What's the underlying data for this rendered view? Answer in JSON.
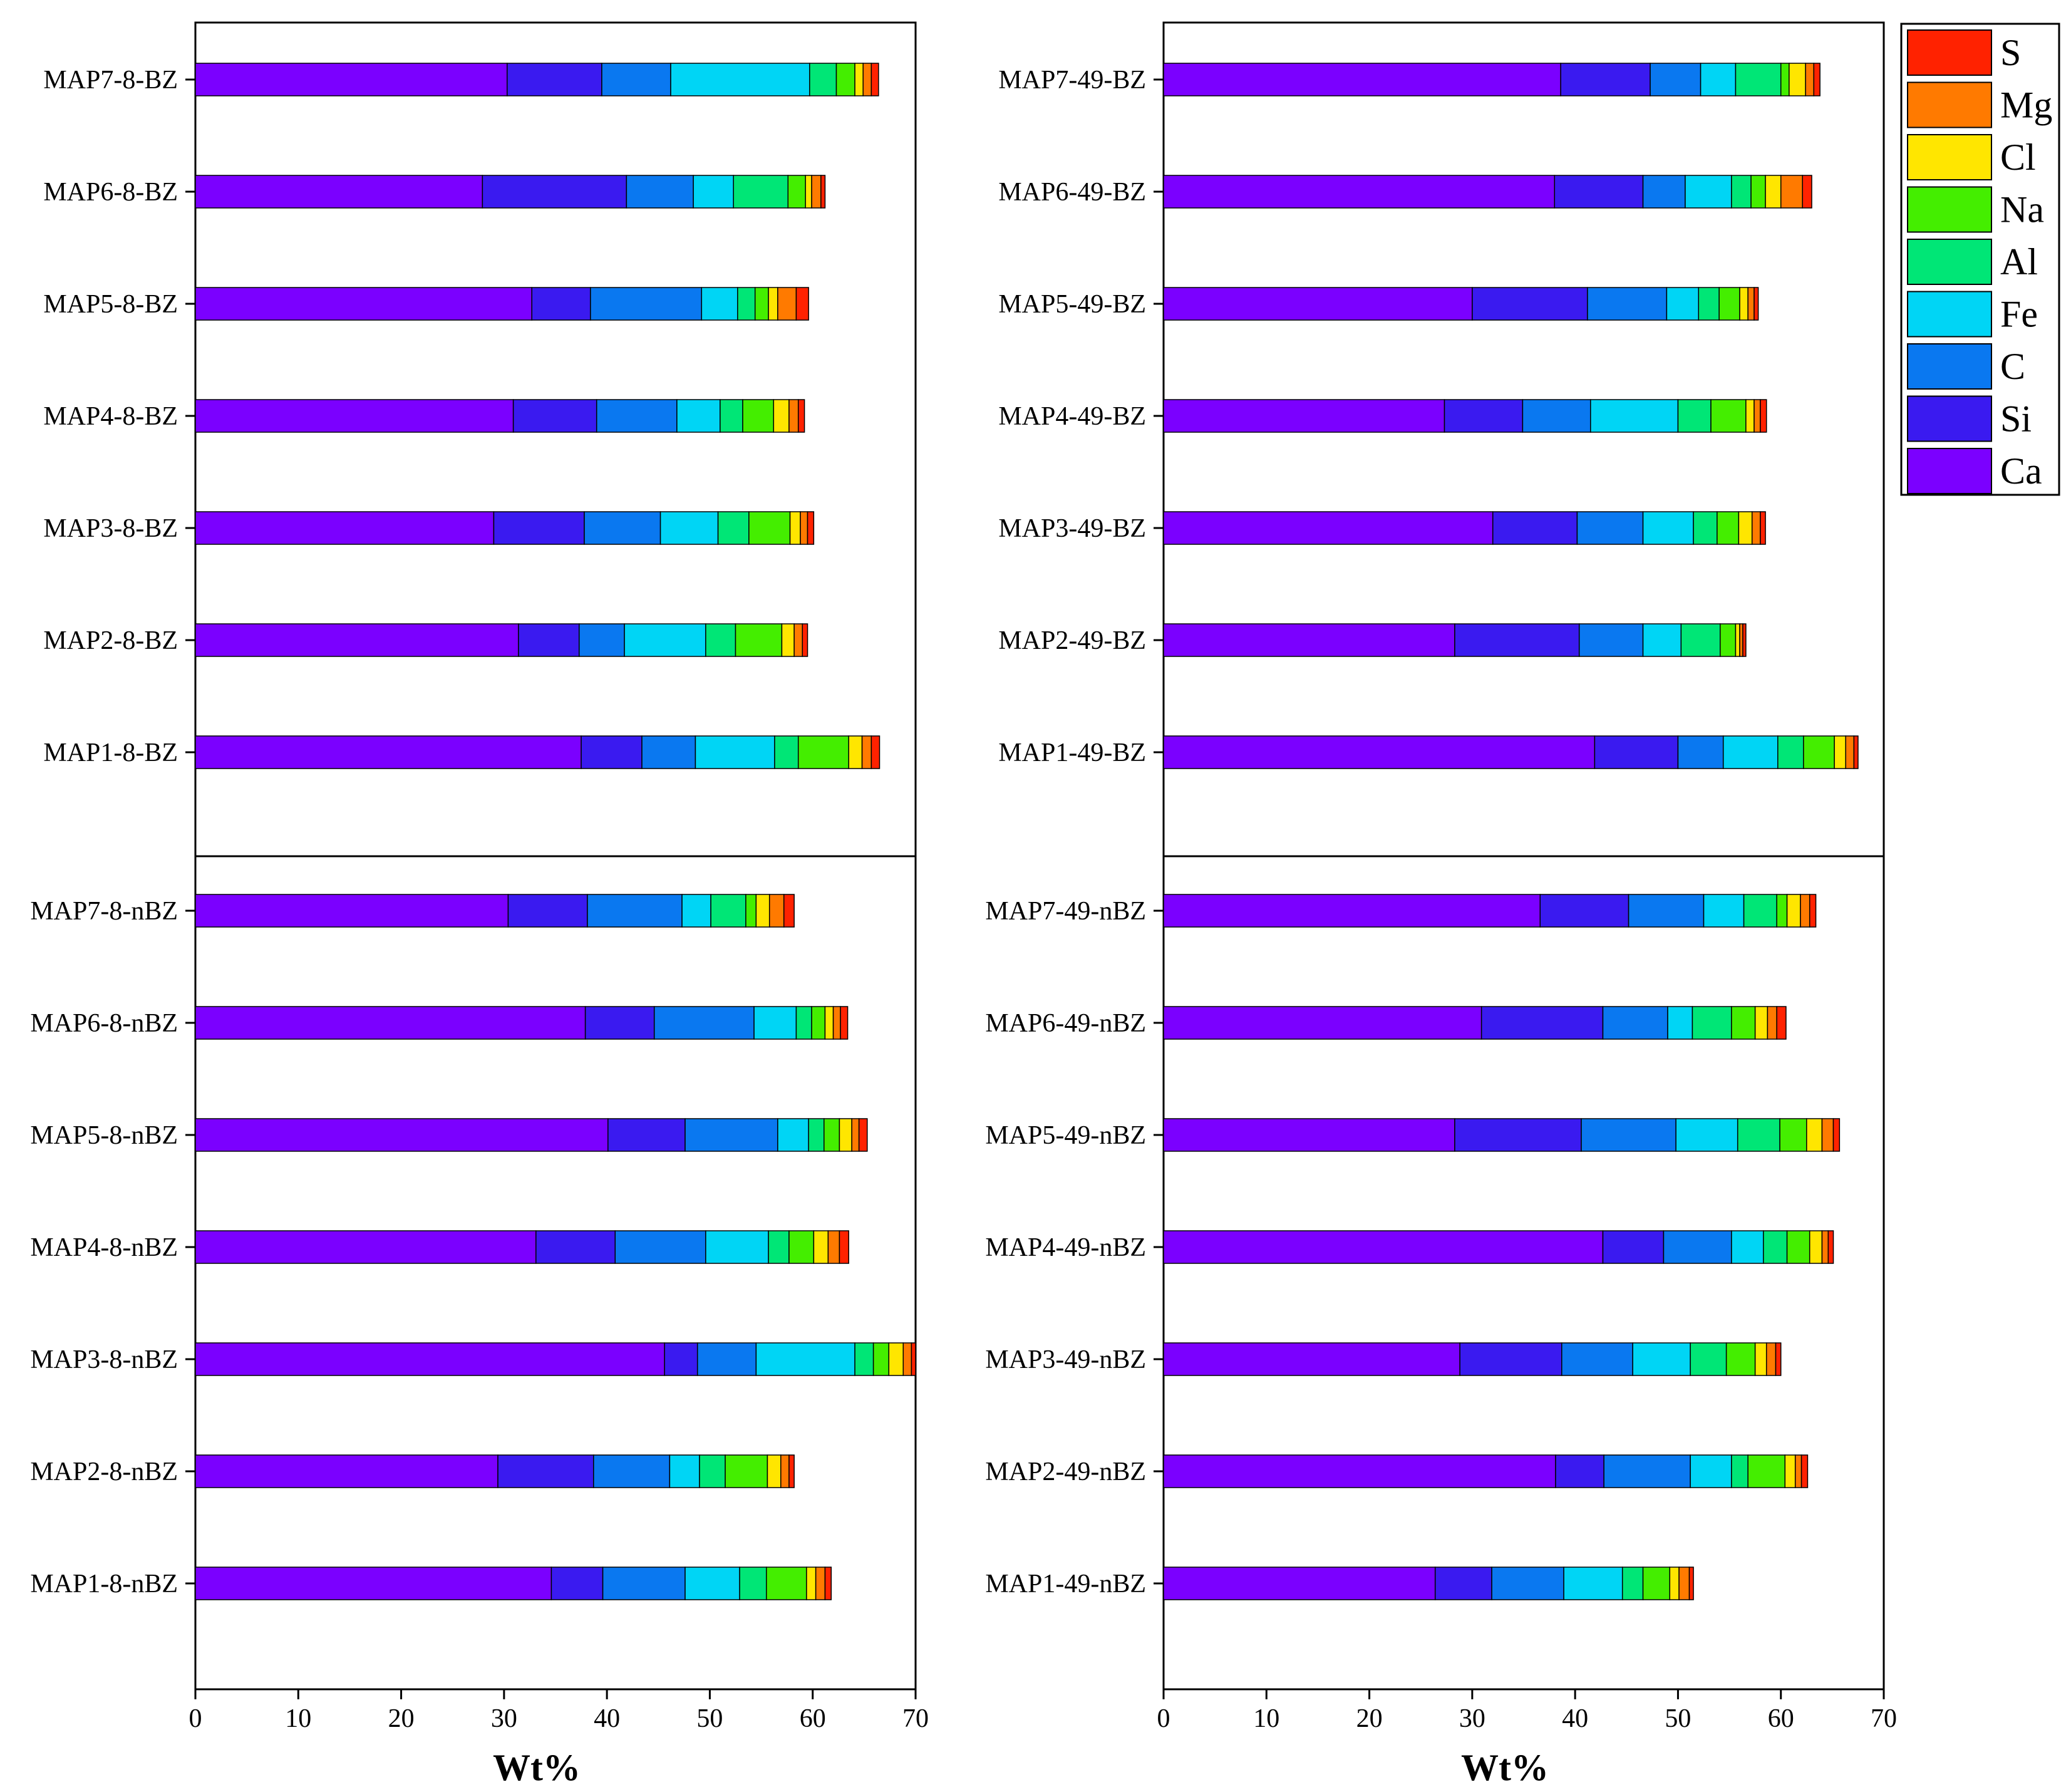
{
  "chart_data": {
    "type": "bar",
    "orientation": "horizontal",
    "stacked": true,
    "xlabel": "Wt%",
    "xlim": [
      0,
      70
    ],
    "xticks": [
      0,
      10,
      20,
      30,
      40,
      50,
      60,
      70
    ],
    "elements": [
      "Ca",
      "Si",
      "C",
      "Fe",
      "Al",
      "Na",
      "Cl",
      "Mg",
      "S"
    ],
    "colors": {
      "Ca": "#7B00FF",
      "Si": "#3A1AF0",
      "C": "#0A78F0",
      "Fe": "#00D5F5",
      "Al": "#00E676",
      "Na": "#44EE00",
      "Cl": "#FFE600",
      "Mg": "#FF7A00",
      "S": "#FF2200"
    },
    "legend": {
      "placement": "top-right outside",
      "order": [
        "S",
        "Mg",
        "Cl",
        "Na",
        "Al",
        "Fe",
        "C",
        "Si",
        "Ca"
      ]
    },
    "panels": [
      {
        "name": "8-BZ",
        "position": "top-left",
        "categories": [
          "MAP7-8-BZ",
          "MAP6-8-BZ",
          "MAP5-8-BZ",
          "MAP4-8-BZ",
          "MAP3-8-BZ",
          "MAP2-8-BZ",
          "MAP1-8-BZ"
        ],
        "values": [
          [
            30.3,
            9.2,
            6.7,
            13.5,
            2.6,
            1.8,
            0.8,
            0.8,
            0.7
          ],
          [
            27.9,
            14.0,
            6.5,
            3.9,
            5.3,
            1.7,
            0.6,
            0.9,
            0.4
          ],
          [
            32.7,
            5.7,
            10.8,
            3.5,
            1.7,
            1.3,
            0.9,
            1.8,
            1.2
          ],
          [
            30.9,
            8.1,
            7.8,
            4.2,
            2.2,
            3.0,
            1.5,
            0.9,
            0.6
          ],
          [
            29.0,
            8.8,
            7.4,
            5.6,
            3.0,
            4.0,
            1.0,
            0.7,
            0.6
          ],
          [
            31.4,
            5.9,
            4.4,
            7.9,
            2.9,
            4.5,
            1.2,
            0.8,
            0.5
          ],
          [
            37.5,
            5.9,
            5.2,
            7.7,
            2.3,
            4.9,
            1.3,
            0.9,
            0.8
          ]
        ]
      },
      {
        "name": "8-nBZ",
        "position": "bottom-left",
        "categories": [
          "MAP7-8-nBZ",
          "MAP6-8-nBZ",
          "MAP5-8-nBZ",
          "MAP4-8-nBZ",
          "MAP3-8-nBZ",
          "MAP2-8-nBZ",
          "MAP1-8-nBZ"
        ],
        "values": [
          [
            30.4,
            7.7,
            9.2,
            2.8,
            3.4,
            1.0,
            1.3,
            1.4,
            1.0
          ],
          [
            37.9,
            6.7,
            9.7,
            4.1,
            1.5,
            1.3,
            0.8,
            0.7,
            0.7
          ],
          [
            40.1,
            7.5,
            9.0,
            3.0,
            1.5,
            1.5,
            1.2,
            0.7,
            0.8
          ],
          [
            33.1,
            7.7,
            8.8,
            6.1,
            2.0,
            2.4,
            1.4,
            1.1,
            0.9
          ],
          [
            45.6,
            3.2,
            5.7,
            9.6,
            1.8,
            1.5,
            1.4,
            0.8,
            0.4
          ],
          [
            29.4,
            9.3,
            7.4,
            2.9,
            2.5,
            4.1,
            1.3,
            0.8,
            0.5
          ],
          [
            34.6,
            5.0,
            8.0,
            5.3,
            2.6,
            3.9,
            0.9,
            0.9,
            0.6
          ]
        ]
      },
      {
        "name": "49-BZ",
        "position": "top-right",
        "categories": [
          "MAP7-49-BZ",
          "MAP6-49-BZ",
          "MAP5-49-BZ",
          "MAP4-49-BZ",
          "MAP3-49-BZ",
          "MAP2-49-BZ",
          "MAP1-49-BZ"
        ],
        "values": [
          [
            38.6,
            8.7,
            4.9,
            3.4,
            4.4,
            0.8,
            1.6,
            0.8,
            0.6
          ],
          [
            38.0,
            8.6,
            4.1,
            4.5,
            1.9,
            1.4,
            1.5,
            2.1,
            0.9
          ],
          [
            30.0,
            11.2,
            7.7,
            3.1,
            2.0,
            2.0,
            0.8,
            0.6,
            0.4
          ],
          [
            27.3,
            7.6,
            6.6,
            8.5,
            3.2,
            3.4,
            0.8,
            0.6,
            0.6
          ],
          [
            32.0,
            8.2,
            6.4,
            4.9,
            2.3,
            2.1,
            1.3,
            0.8,
            0.5
          ],
          [
            28.3,
            12.1,
            6.2,
            3.7,
            3.8,
            1.5,
            0.4,
            0.3,
            0.3
          ],
          [
            41.9,
            8.1,
            4.4,
            5.3,
            2.5,
            3.0,
            1.1,
            0.8,
            0.4
          ]
        ]
      },
      {
        "name": "49-nBZ",
        "position": "bottom-right",
        "categories": [
          "MAP7-49-nBZ",
          "MAP6-49-nBZ",
          "MAP5-49-nBZ",
          "MAP4-49-nBZ",
          "MAP3-49-nBZ",
          "MAP2-49-nBZ",
          "MAP1-49-nBZ"
        ],
        "values": [
          [
            36.6,
            8.6,
            7.3,
            3.9,
            3.2,
            1.0,
            1.3,
            0.9,
            0.6
          ],
          [
            30.9,
            11.8,
            6.3,
            2.4,
            3.8,
            2.3,
            1.2,
            0.9,
            0.9
          ],
          [
            28.3,
            12.3,
            9.2,
            6.0,
            4.1,
            2.6,
            1.5,
            1.1,
            0.6
          ],
          [
            42.7,
            5.9,
            6.6,
            3.1,
            2.3,
            2.2,
            1.2,
            0.6,
            0.5
          ],
          [
            28.8,
            9.9,
            6.9,
            5.6,
            3.5,
            2.8,
            1.1,
            0.9,
            0.5
          ],
          [
            38.1,
            4.7,
            8.4,
            4.0,
            1.6,
            3.6,
            1.0,
            0.6,
            0.6
          ],
          [
            26.4,
            5.5,
            7.0,
            5.7,
            2.0,
            2.6,
            0.9,
            1.0,
            0.4
          ]
        ]
      }
    ]
  }
}
